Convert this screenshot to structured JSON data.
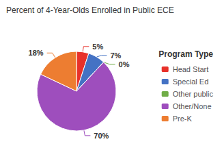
{
  "chart_data": {
    "type": "pie",
    "title": "Percent of 4-Year-Olds Enrolled in Public ECE",
    "categories": [
      "Head Start",
      "Special Ed",
      "Other public",
      "Other/None",
      "Pre-K"
    ],
    "values": [
      5,
      7,
      0,
      70,
      18
    ],
    "colors": [
      "#e8312a",
      "#4472c4",
      "#70ad47",
      "#9e4ebd",
      "#ed7d31"
    ],
    "data_labels": true,
    "value_labels": [
      "5%",
      "7%",
      "0%",
      "70%",
      "18%"
    ],
    "legend": "right",
    "legend_title": "Program Type"
  }
}
